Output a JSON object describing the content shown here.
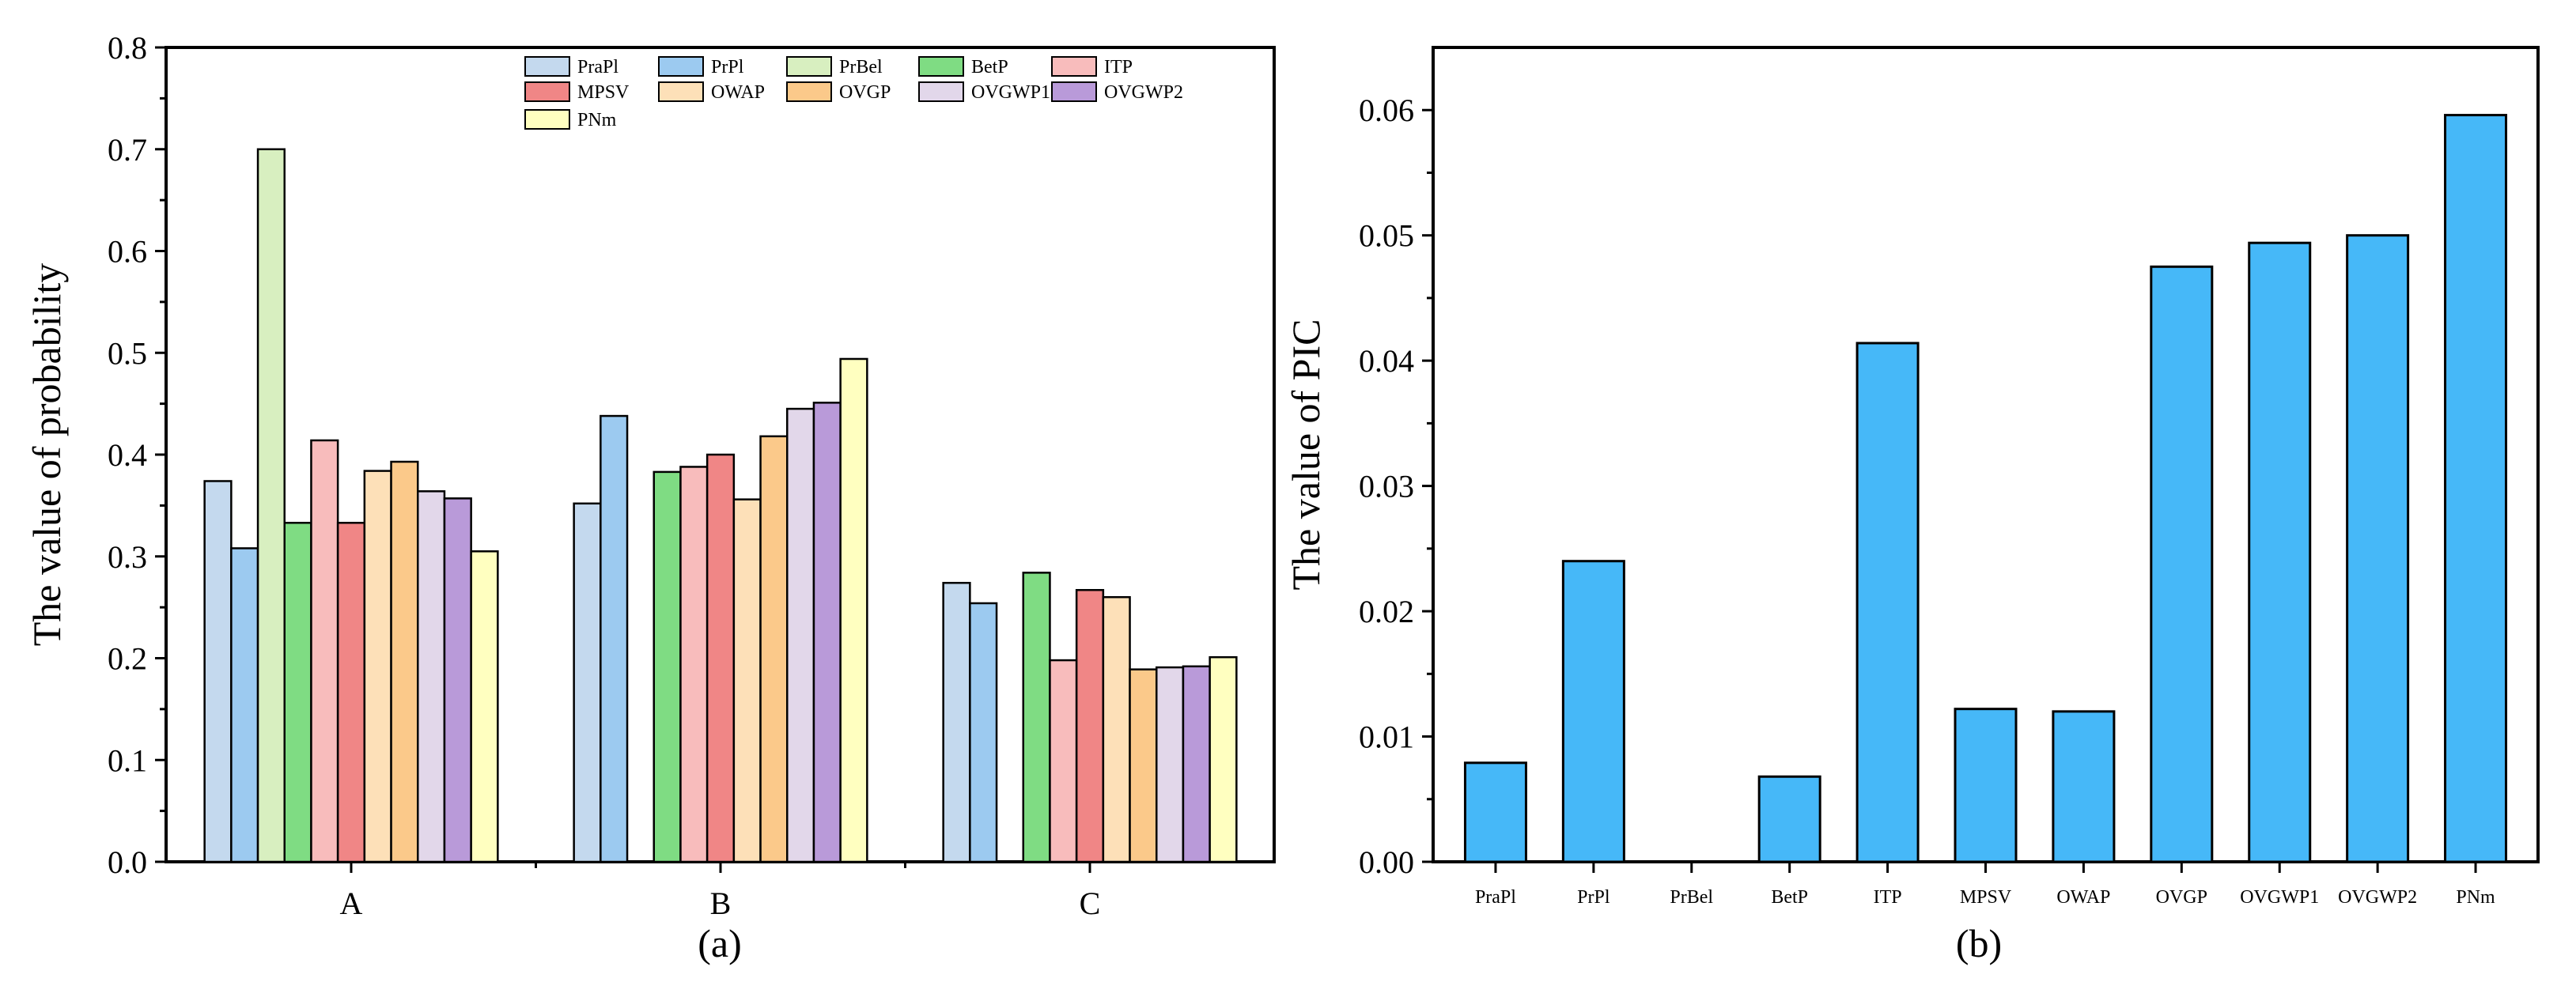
{
  "chart_data": [
    {
      "type": "bar",
      "panel_label": "(a)",
      "ylabel": "The value of probability",
      "xlabel": "",
      "ylim": [
        0,
        0.8
      ],
      "yticks": [
        "0.0",
        "0.1",
        "0.2",
        "0.3",
        "0.4",
        "0.5",
        "0.6",
        "0.7",
        "0.8"
      ],
      "categories": [
        "A",
        "B",
        "C"
      ],
      "legend_position": "top-center",
      "series": [
        {
          "name": "PraPl",
          "color": "#c4d9ee",
          "values": [
            0.374,
            0.352,
            0.274
          ]
        },
        {
          "name": "PrPl",
          "color": "#9ccaf0",
          "values": [
            0.308,
            0.438,
            0.254
          ]
        },
        {
          "name": "PrBel",
          "color": "#d8efc0",
          "values": [
            0.7,
            0.0,
            0.0
          ]
        },
        {
          "name": "BetP",
          "color": "#7fdc83",
          "values": [
            0.333,
            0.383,
            0.284
          ]
        },
        {
          "name": "ITP",
          "color": "#f8bcbc",
          "values": [
            0.414,
            0.388,
            0.198
          ]
        },
        {
          "name": "MPSV",
          "color": "#f08686",
          "values": [
            0.333,
            0.4,
            0.267
          ]
        },
        {
          "name": "OWAP",
          "color": "#fde0b8",
          "values": [
            0.384,
            0.356,
            0.26
          ]
        },
        {
          "name": "OVGP",
          "color": "#fbc98a",
          "values": [
            0.393,
            0.418,
            0.189
          ]
        },
        {
          "name": "OVGWP1",
          "color": "#e2d7ea",
          "values": [
            0.364,
            0.445,
            0.191
          ]
        },
        {
          "name": "OVGWP2",
          "color": "#b99ad9",
          "values": [
            0.357,
            0.451,
            0.192
          ]
        },
        {
          "name": "PNm",
          "color": "#ffffc0",
          "values": [
            0.305,
            0.494,
            0.201
          ]
        }
      ]
    },
    {
      "type": "bar",
      "panel_label": "(b)",
      "ylabel": "The value of PIC",
      "xlabel": "",
      "ylim": [
        0,
        0.065
      ],
      "yticks": [
        "0.00",
        "0.01",
        "0.02",
        "0.03",
        "0.04",
        "0.05",
        "0.06"
      ],
      "categories": [
        "PraPl",
        "PrPl",
        "PrBel",
        "BetP",
        "ITP",
        "MPSV",
        "OWAP",
        "OVGP",
        "OVGWP1",
        "OVGWP2",
        "PNm"
      ],
      "color": "#46b8f8",
      "values": [
        0.0079,
        0.024,
        0.0,
        0.0068,
        0.0414,
        0.0122,
        0.012,
        0.0475,
        0.0494,
        0.05,
        0.0596
      ]
    }
  ]
}
